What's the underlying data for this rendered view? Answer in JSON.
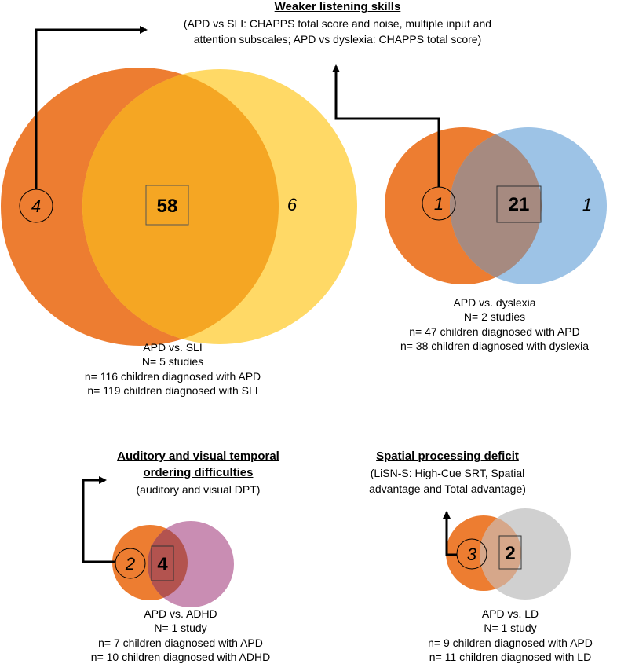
{
  "panels": {
    "apd_sli": {
      "counts": {
        "left": "4",
        "overlap": "58",
        "right": "6"
      },
      "caption": [
        "APD vs. SLI",
        "N= 5 studies",
        "n= 116 children diagnosed with APD",
        "n= 119 children diagnosed with SLI"
      ],
      "colors": {
        "apd": "#ED7D31",
        "other": "#FFD966",
        "overlap": "#F5A623"
      }
    },
    "apd_dyslexia": {
      "counts": {
        "left": "1",
        "overlap": "21",
        "right": "1"
      },
      "caption": [
        "APD vs. dyslexia",
        "N= 2 studies",
        "n= 47 children diagnosed with APD",
        "n= 38 children diagnosed with dyslexia"
      ],
      "colors": {
        "apd": "#ED7D31",
        "other": "#9DC3E6",
        "overlap": "#A68A80"
      }
    },
    "apd_adhd": {
      "counts": {
        "left": "2",
        "overlap": "4"
      },
      "caption": [
        "APD vs. ADHD",
        "N= 1 study",
        "n= 7 children diagnosed with APD",
        "n= 10 children diagnosed with ADHD"
      ],
      "colors": {
        "apd": "#ED7D31",
        "other": "#C98DB3",
        "overlap": "#B3534F"
      }
    },
    "apd_ld": {
      "counts": {
        "left": "3",
        "overlap": "2"
      },
      "caption": [
        "APD vs. LD",
        "N= 1 study",
        "n= 9 children diagnosed with APD",
        "n= 11 children diagnosed with LD"
      ],
      "colors": {
        "apd": "#ED7D31",
        "other": "#D0D0D0",
        "overlap": "#D6A78A"
      }
    }
  },
  "findings": {
    "listening": {
      "heading": "Weaker listening skills",
      "details": [
        "(APD vs SLI: CHAPPS total score and noise, multiple input and",
        "attention subscales; APD vs dyslexia: CHAPPS total score)"
      ]
    },
    "temporal": {
      "heading": [
        "Auditory and visual temporal",
        "ordering difficulties"
      ],
      "details": [
        "(auditory and visual DPT)"
      ]
    },
    "spatial": {
      "heading": "Spatial processing deficit",
      "details": [
        "(LiSN-S: High-Cue SRT, Spatial",
        "advantage and Total advantage)"
      ]
    }
  }
}
